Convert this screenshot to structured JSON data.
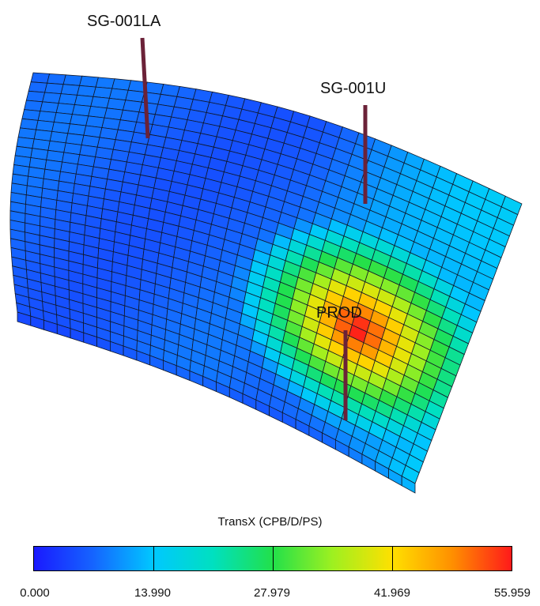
{
  "wells": [
    {
      "name": "SG-001LA"
    },
    {
      "name": "SG-001U"
    },
    {
      "name": "PROD"
    }
  ],
  "property": {
    "name": "TransX (CPB/D/PS)",
    "min": 0.0,
    "max": 55.959
  },
  "colorbar": {
    "ticks": [
      "0.000",
      "13.990",
      "27.979",
      "41.969",
      "55.959"
    ]
  },
  "colors": {
    "well_line": "#6b2238",
    "cell_edge": "#10182a",
    "palette": [
      "#1a1aff",
      "#1565ff",
      "#00c8ff",
      "#00e0c0",
      "#22e04a",
      "#9ef020",
      "#ffe000",
      "#ff9000",
      "#ff1a1a"
    ]
  }
}
